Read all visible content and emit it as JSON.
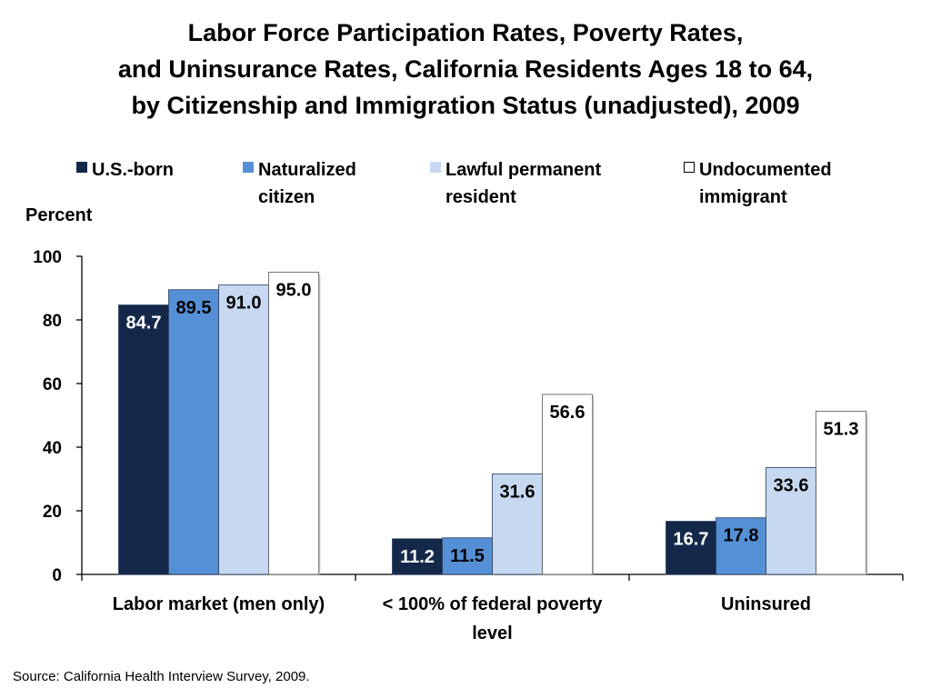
{
  "title": {
    "line1": "Labor Force Participation Rates, Poverty Rates,",
    "line2": "and Uninsurance Rates, California Residents Ages 18 to 64,",
    "line3": "by Citizenship and Immigration Status (unadjusted), 2009"
  },
  "legend": [
    {
      "label_line1": "U.S.-born",
      "label_line2": "",
      "color": "#14284a"
    },
    {
      "label_line1": "Naturalized",
      "label_line2": "citizen",
      "color": "#5590d6"
    },
    {
      "label_line1": "Lawful permanent",
      "label_line2": "resident",
      "color": "#c6d9f1"
    },
    {
      "label_line1": "Undocumented",
      "label_line2": "immigrant",
      "color": "#ffffff"
    }
  ],
  "source": "Source: California Health Interview Survey, 2009.",
  "chart_data": {
    "type": "bar",
    "ylabel": "Percent",
    "ylim": [
      0,
      100
    ],
    "yticks": [
      0,
      20,
      40,
      60,
      80,
      100
    ],
    "grid": false,
    "legend_position": "top",
    "categories": [
      [
        "Labor market (men only)"
      ],
      [
        "< 100% of federal poverty",
        "level"
      ],
      [
        "Uninsured"
      ]
    ],
    "series": [
      {
        "name": "U.S.-born",
        "color": "#14284a",
        "label_color": "#ffffff",
        "values": [
          84.7,
          11.2,
          16.7
        ]
      },
      {
        "name": "Naturalized citizen",
        "color": "#5590d6",
        "label_color": "#000000",
        "values": [
          89.5,
          11.5,
          17.8
        ]
      },
      {
        "name": "Lawful permanent resident",
        "color": "#c6d9f1",
        "label_color": "#000000",
        "values": [
          91.0,
          31.6,
          33.6
        ]
      },
      {
        "name": "Undocumented immigrant",
        "color": "#ffffff",
        "label_color": "#000000",
        "values": [
          95.0,
          56.6,
          51.3
        ]
      }
    ],
    "data_labels": [
      [
        "84.7",
        "89.5",
        "91.0",
        "95.0"
      ],
      [
        "11.2",
        "11.5",
        "31.6",
        "56.6"
      ],
      [
        "16.7",
        "17.8",
        "33.6",
        "51.3"
      ]
    ]
  }
}
